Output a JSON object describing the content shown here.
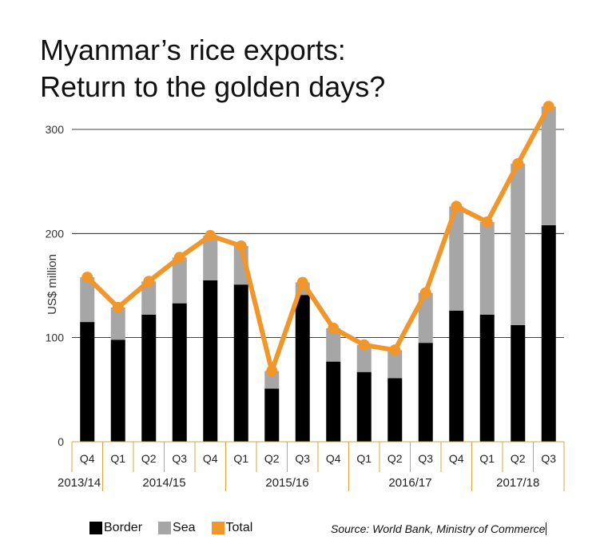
{
  "title_lines": [
    "Myanmar’s rice exports:",
    "Return to the golden days?"
  ],
  "source": "Source: World Bank, Ministry of Commerce",
  "colors": {
    "border": "#000000",
    "sea": "#a6a6a6",
    "total": "#f0962a",
    "axis_gold": "#d9a441"
  },
  "legend": [
    {
      "label": "Border",
      "color": "#000000"
    },
    {
      "label": "Sea",
      "color": "#a6a6a6"
    },
    {
      "label": "Total",
      "color": "#f0962a"
    }
  ],
  "chart_data": {
    "type": "bar",
    "stacked": true,
    "ylabel": "US$ million",
    "ylim": [
      0,
      330
    ],
    "yticks": [
      0,
      100,
      200,
      300
    ],
    "grid": true,
    "categories": [
      "Q4",
      "Q1",
      "Q2",
      "Q3",
      "Q4",
      "Q1",
      "Q2",
      "Q3",
      "Q4",
      "Q1",
      "Q2",
      "Q3",
      "Q4",
      "Q1",
      "Q2",
      "Q3"
    ],
    "groups": [
      {
        "label": "2013/14",
        "count": 1
      },
      {
        "label": "2014/15",
        "count": 4
      },
      {
        "label": "2015/16",
        "count": 4
      },
      {
        "label": "2016/17",
        "count": 4
      },
      {
        "label": "2017/18",
        "count": 3
      }
    ],
    "series": [
      {
        "name": "Border",
        "type": "bar",
        "values": [
          115,
          98,
          122,
          133,
          155,
          151,
          51,
          141,
          77,
          67,
          61,
          95,
          126,
          122,
          112,
          208
        ]
      },
      {
        "name": "Sea",
        "type": "bar",
        "values": [
          43,
          31,
          32,
          44,
          43,
          37,
          17,
          12,
          32,
          26,
          27,
          48,
          100,
          89,
          155,
          114
        ]
      },
      {
        "name": "Total",
        "type": "line",
        "values": [
          158,
          129,
          154,
          177,
          198,
          188,
          68,
          153,
          109,
          93,
          88,
          143,
          226,
          211,
          267,
          322
        ]
      }
    ]
  }
}
